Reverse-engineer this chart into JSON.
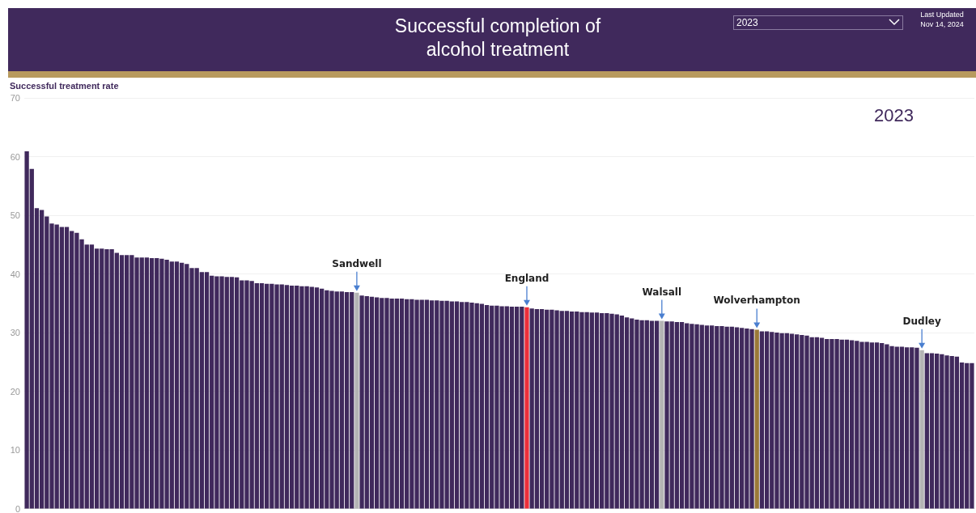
{
  "chart_data": {
    "type": "bar",
    "title": "Successful completion of alcohol treatment",
    "ylabel": "Successful treatment rate",
    "annotations": [
      "2023",
      "2023",
      "Last Updated",
      "Nov 14, 2024"
    ],
    "categories": [
      null,
      null,
      null,
      null,
      null,
      null,
      null,
      null,
      null,
      null,
      null,
      null,
      null,
      null,
      null,
      null,
      null,
      null,
      null,
      null,
      null,
      null,
      null,
      null,
      null,
      null,
      null,
      null,
      null,
      null,
      null,
      null,
      null,
      null,
      null,
      null,
      null,
      null,
      null,
      null,
      null,
      null,
      null,
      null,
      null,
      null,
      null,
      null,
      null,
      null,
      null,
      null,
      null,
      null,
      null,
      null,
      null,
      null,
      null,
      null,
      null,
      null,
      null,
      null,
      null,
      null,
      "Sandwell",
      null,
      null,
      null,
      null,
      null,
      null,
      null,
      null,
      null,
      null,
      null,
      null,
      null,
      null,
      null,
      null,
      null,
      null,
      null,
      null,
      null,
      null,
      null,
      null,
      null,
      null,
      null,
      null,
      null,
      null,
      null,
      null,
      null,
      "England",
      null,
      null,
      null,
      null,
      null,
      null,
      null,
      null,
      null,
      null,
      null,
      null,
      null,
      null,
      null,
      null,
      null,
      null,
      null,
      null,
      null,
      null,
      null,
      null,
      null,
      null,
      "Walsall",
      null,
      null,
      null,
      null,
      null,
      null,
      null,
      null,
      null,
      null,
      null,
      null,
      null,
      null,
      null,
      null,
      null,
      null,
      "Wolverhampton",
      null,
      null,
      null,
      null,
      null,
      null,
      null,
      null,
      null,
      null,
      null,
      null,
      null,
      null,
      null,
      null,
      null,
      null,
      null,
      null,
      null,
      null,
      null,
      null,
      null,
      null,
      null,
      null,
      null,
      null,
      null,
      null,
      "Dudley",
      null,
      null,
      null,
      null,
      null,
      null,
      null,
      null,
      null,
      null
    ],
    "values": [
      60.9,
      57.9,
      51.2,
      50.9,
      49.8,
      48.6,
      48.4,
      48.0,
      48.0,
      47.3,
      47.0,
      45.9,
      45.0,
      45.0,
      44.3,
      44.3,
      44.2,
      44.2,
      43.6,
      43.2,
      43.2,
      43.2,
      42.8,
      42.8,
      42.8,
      42.7,
      42.7,
      42.6,
      42.4,
      42.1,
      42.1,
      41.9,
      41.7,
      41.0,
      41.0,
      40.3,
      40.3,
      39.7,
      39.6,
      39.6,
      39.5,
      39.5,
      39.4,
      38.9,
      38.9,
      38.8,
      38.4,
      38.4,
      38.3,
      38.3,
      38.2,
      38.2,
      38.1,
      38.0,
      38.0,
      37.9,
      37.9,
      37.8,
      37.7,
      37.5,
      37.2,
      37.1,
      37.0,
      37.0,
      36.9,
      36.9,
      36.8,
      36.3,
      36.2,
      36.1,
      36.0,
      35.9,
      35.9,
      35.8,
      35.8,
      35.8,
      35.7,
      35.7,
      35.6,
      35.6,
      35.6,
      35.5,
      35.5,
      35.4,
      35.4,
      35.3,
      35.3,
      35.2,
      35.2,
      35.1,
      35.0,
      34.9,
      34.7,
      34.6,
      34.6,
      34.5,
      34.5,
      34.4,
      34.4,
      34.4,
      34.3,
      34.1,
      34.0,
      34.0,
      33.9,
      33.9,
      33.8,
      33.7,
      33.7,
      33.6,
      33.6,
      33.5,
      33.5,
      33.4,
      33.4,
      33.3,
      33.3,
      33.2,
      33.1,
      32.9,
      32.6,
      32.4,
      32.2,
      32.1,
      32.1,
      32.0,
      32.0,
      32.0,
      31.9,
      31.9,
      31.8,
      31.8,
      31.6,
      31.5,
      31.4,
      31.3,
      31.2,
      31.2,
      31.1,
      31.1,
      31.0,
      31.0,
      30.9,
      30.8,
      30.7,
      30.6,
      30.5,
      30.2,
      30.2,
      30.1,
      30.0,
      29.9,
      29.9,
      29.8,
      29.7,
      29.6,
      29.5,
      29.2,
      29.2,
      29.1,
      28.9,
      28.9,
      28.9,
      28.8,
      28.8,
      28.7,
      28.6,
      28.4,
      28.4,
      28.3,
      28.3,
      28.2,
      28.0,
      27.7,
      27.6,
      27.6,
      27.5,
      27.5,
      27.4,
      27.0,
      26.5,
      26.5,
      26.4,
      26.3,
      26.1,
      26.0,
      25.9,
      24.9,
      24.8,
      24.8
    ],
    "colors": [
      "#40295c",
      "#40295c",
      "#40295c",
      "#40295c",
      "#40295c",
      "#40295c",
      "#40295c",
      "#40295c",
      "#40295c",
      "#40295c",
      "#40295c",
      "#40295c",
      "#40295c",
      "#40295c",
      "#40295c",
      "#40295c",
      "#40295c",
      "#40295c",
      "#40295c",
      "#40295c",
      "#40295c",
      "#40295c",
      "#40295c",
      "#40295c",
      "#40295c",
      "#40295c",
      "#40295c",
      "#40295c",
      "#40295c",
      "#40295c",
      "#40295c",
      "#40295c",
      "#40295c",
      "#40295c",
      "#40295c",
      "#40295c",
      "#40295c",
      "#40295c",
      "#40295c",
      "#40295c",
      "#40295c",
      "#40295c",
      "#40295c",
      "#40295c",
      "#40295c",
      "#40295c",
      "#40295c",
      "#40295c",
      "#40295c",
      "#40295c",
      "#40295c",
      "#40295c",
      "#40295c",
      "#40295c",
      "#40295c",
      "#40295c",
      "#40295c",
      "#40295c",
      "#40295c",
      "#40295c",
      "#40295c",
      "#40295c",
      "#40295c",
      "#40295c",
      "#40295c",
      "#40295c",
      "#b4b4b4",
      "#40295c",
      "#40295c",
      "#40295c",
      "#40295c",
      "#40295c",
      "#40295c",
      "#40295c",
      "#40295c",
      "#40295c",
      "#40295c",
      "#40295c",
      "#40295c",
      "#40295c",
      "#40295c",
      "#40295c",
      "#40295c",
      "#40295c",
      "#40295c",
      "#40295c",
      "#40295c",
      "#40295c",
      "#40295c",
      "#40295c",
      "#40295c",
      "#40295c",
      "#40295c",
      "#40295c",
      "#40295c",
      "#40295c",
      "#40295c",
      "#40295c",
      "#40295c",
      "#40295c",
      "#ec2f3b",
      "#40295c",
      "#40295c",
      "#40295c",
      "#40295c",
      "#40295c",
      "#40295c",
      "#40295c",
      "#40295c",
      "#40295c",
      "#40295c",
      "#40295c",
      "#40295c",
      "#40295c",
      "#40295c",
      "#40295c",
      "#40295c",
      "#40295c",
      "#40295c",
      "#40295c",
      "#40295c",
      "#40295c",
      "#40295c",
      "#40295c",
      "#40295c",
      "#40295c",
      "#40295c",
      "#b4b4b4",
      "#40295c",
      "#40295c",
      "#40295c",
      "#40295c",
      "#40295c",
      "#40295c",
      "#40295c",
      "#40295c",
      "#40295c",
      "#40295c",
      "#40295c",
      "#40295c",
      "#40295c",
      "#40295c",
      "#40295c",
      "#40295c",
      "#40295c",
      "#40295c",
      "#9a7a38",
      "#40295c",
      "#40295c",
      "#40295c",
      "#40295c",
      "#40295c",
      "#40295c",
      "#40295c",
      "#40295c",
      "#40295c",
      "#40295c",
      "#40295c",
      "#40295c",
      "#40295c",
      "#40295c",
      "#40295c",
      "#40295c",
      "#40295c",
      "#40295c",
      "#40295c",
      "#40295c",
      "#40295c",
      "#40295c",
      "#40295c",
      "#40295c",
      "#40295c",
      "#40295c",
      "#40295c",
      "#40295c",
      "#40295c",
      "#40295c",
      "#40295c",
      "#40295c",
      "#b4b4b4",
      "#40295c",
      "#40295c",
      "#40295c",
      "#40295c",
      "#40295c",
      "#40295c",
      "#40295c",
      "#40295c",
      "#40295c",
      "#40295c"
    ],
    "ylim": [
      0,
      70
    ],
    "yticks": [
      0,
      10,
      20,
      30,
      40,
      50,
      60,
      70
    ],
    "grid": "y"
  }
}
